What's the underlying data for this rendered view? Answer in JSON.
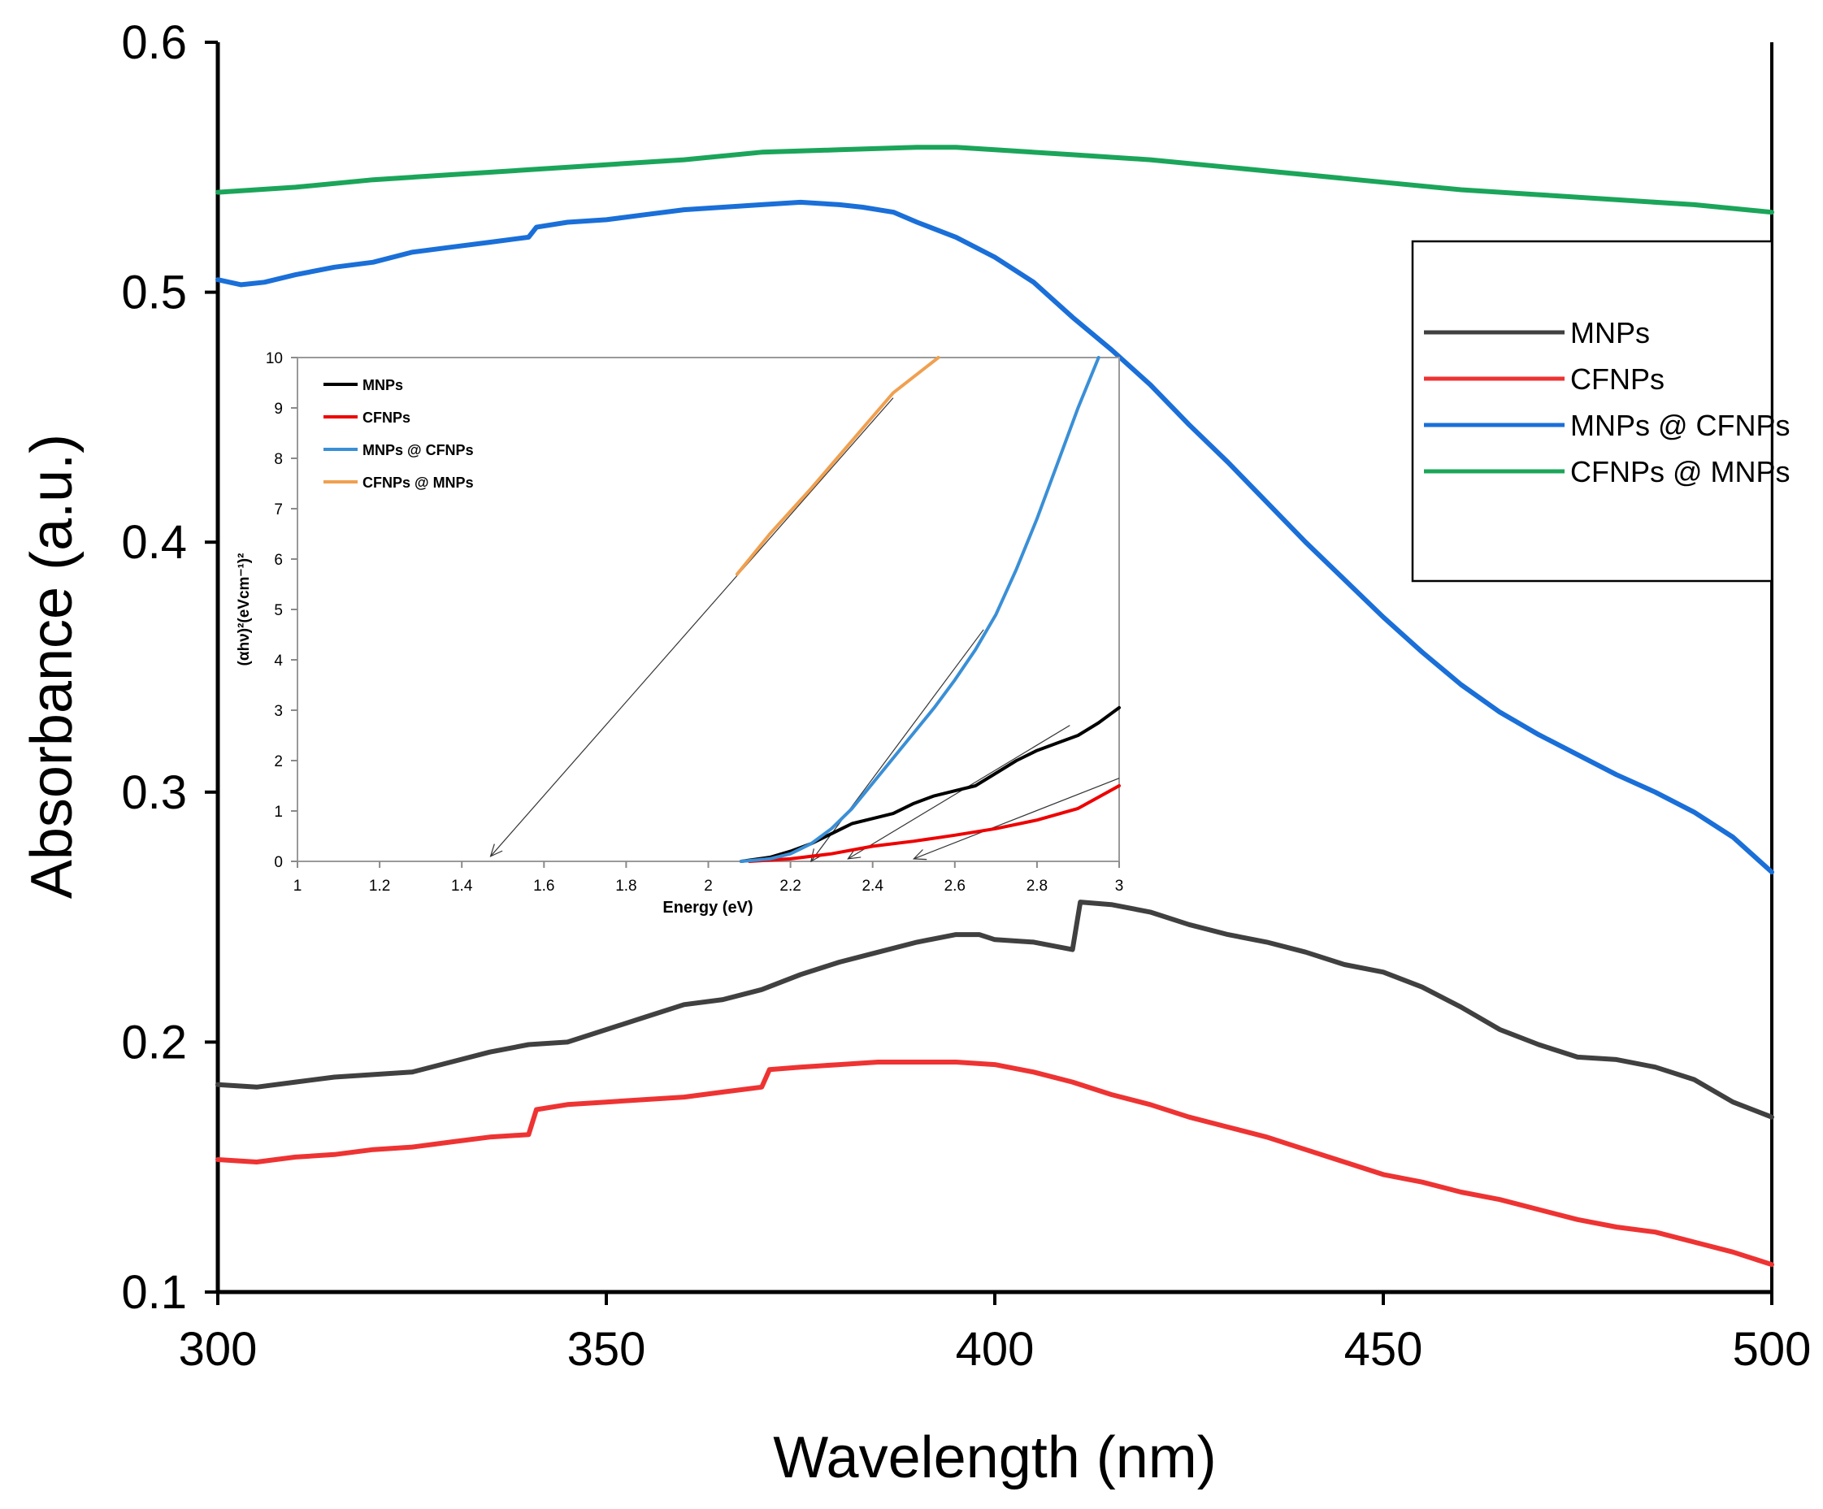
{
  "chart_data": [
    {
      "type": "line",
      "name": "main",
      "title": "",
      "xlabel": "Wavelength (nm)",
      "ylabel": "Absorbance (a.u.)",
      "xlim": [
        300,
        500
      ],
      "ylim": [
        0.1,
        0.6
      ],
      "xticks": [
        300,
        350,
        400,
        450,
        500
      ],
      "yticks": [
        0.1,
        0.2,
        0.3,
        0.4,
        0.5,
        0.6
      ],
      "grid": false,
      "legend_position": "right",
      "series": [
        {
          "name": "MNPs",
          "color": "#404040",
          "x": [
            300,
            305,
            310,
            315,
            320,
            325,
            330,
            335,
            340,
            345,
            350,
            355,
            360,
            365,
            370,
            375,
            380,
            385,
            390,
            395,
            398,
            400,
            405,
            410,
            411,
            415,
            420,
            425,
            430,
            435,
            440,
            445,
            450,
            455,
            460,
            465,
            470,
            475,
            480,
            485,
            490,
            495,
            500
          ],
          "values": [
            0.183,
            0.182,
            0.184,
            0.186,
            0.187,
            0.188,
            0.192,
            0.196,
            0.199,
            0.2,
            0.205,
            0.21,
            0.215,
            0.217,
            0.221,
            0.227,
            0.232,
            0.236,
            0.24,
            0.243,
            0.243,
            0.241,
            0.24,
            0.237,
            0.256,
            0.255,
            0.252,
            0.247,
            0.243,
            0.24,
            0.236,
            0.231,
            0.228,
            0.222,
            0.214,
            0.205,
            0.199,
            0.194,
            0.193,
            0.19,
            0.185,
            0.176,
            0.17
          ]
        },
        {
          "name": "CFNPs",
          "color": "#ee3333",
          "x": [
            300,
            305,
            310,
            315,
            320,
            325,
            330,
            335,
            340,
            341,
            345,
            350,
            355,
            360,
            365,
            370,
            371,
            375,
            380,
            385,
            390,
            395,
            400,
            405,
            410,
            415,
            420,
            425,
            430,
            435,
            440,
            445,
            450,
            455,
            460,
            465,
            470,
            475,
            480,
            485,
            490,
            495,
            500
          ],
          "values": [
            0.153,
            0.152,
            0.154,
            0.155,
            0.157,
            0.158,
            0.16,
            0.162,
            0.163,
            0.173,
            0.175,
            0.176,
            0.177,
            0.178,
            0.18,
            0.182,
            0.189,
            0.19,
            0.191,
            0.192,
            0.192,
            0.192,
            0.191,
            0.188,
            0.184,
            0.179,
            0.175,
            0.17,
            0.166,
            0.162,
            0.157,
            0.152,
            0.147,
            0.144,
            0.14,
            0.137,
            0.133,
            0.129,
            0.126,
            0.124,
            0.12,
            0.116,
            0.111
          ]
        },
        {
          "name": "MNPs @ CFNPs",
          "color": "#1a6fd8",
          "x": [
            300,
            303,
            306,
            310,
            315,
            320,
            325,
            330,
            335,
            340,
            341,
            345,
            350,
            355,
            360,
            365,
            370,
            375,
            380,
            383,
            387,
            390,
            395,
            400,
            405,
            410,
            415,
            420,
            425,
            430,
            435,
            440,
            445,
            450,
            455,
            460,
            465,
            470,
            475,
            480,
            485,
            490,
            495,
            500
          ],
          "values": [
            0.505,
            0.503,
            0.504,
            0.507,
            0.51,
            0.512,
            0.516,
            0.518,
            0.52,
            0.522,
            0.526,
            0.528,
            0.529,
            0.531,
            0.533,
            0.534,
            0.535,
            0.536,
            0.535,
            0.534,
            0.532,
            0.528,
            0.522,
            0.514,
            0.504,
            0.49,
            0.477,
            0.463,
            0.447,
            0.432,
            0.416,
            0.4,
            0.385,
            0.37,
            0.356,
            0.343,
            0.332,
            0.323,
            0.315,
            0.307,
            0.3,
            0.292,
            0.282,
            0.268
          ]
        },
        {
          "name": "CFNPs @ MNPs",
          "color": "#1ba55a",
          "x": [
            300,
            310,
            320,
            330,
            340,
            350,
            360,
            370,
            380,
            390,
            395,
            400,
            410,
            420,
            430,
            440,
            450,
            460,
            470,
            480,
            490,
            500
          ],
          "values": [
            0.54,
            0.542,
            0.545,
            0.547,
            0.549,
            0.551,
            0.553,
            0.556,
            0.557,
            0.558,
            0.558,
            0.557,
            0.555,
            0.553,
            0.55,
            0.547,
            0.544,
            0.541,
            0.539,
            0.537,
            0.535,
            0.532
          ]
        }
      ]
    },
    {
      "type": "line",
      "name": "inset",
      "title": "",
      "xlabel": "Energy (eV)",
      "ylabel": "(αhν)²(eVcm⁻¹)²",
      "xlim": [
        1,
        3
      ],
      "ylim": [
        0,
        10
      ],
      "xticks": [
        "1",
        "1.2",
        "1.4",
        "1.6",
        "1.8",
        "2",
        "2.2",
        "2.4",
        "2.6",
        "2.8",
        "3"
      ],
      "yticks": [
        "0",
        "1",
        "2",
        "3",
        "4",
        "5",
        "6",
        "7",
        "8",
        "9",
        "10"
      ],
      "grid": false,
      "legend_position": "top-left",
      "series": [
        {
          "name": "MNPs",
          "color": "#000000",
          "x": [
            2.08,
            2.15,
            2.2,
            2.25,
            2.3,
            2.35,
            2.4,
            2.45,
            2.5,
            2.55,
            2.6,
            2.65,
            2.7,
            2.75,
            2.8,
            2.85,
            2.9,
            2.95,
            3.0
          ],
          "values": [
            0.0,
            0.08,
            0.2,
            0.35,
            0.55,
            0.75,
            0.85,
            0.95,
            1.15,
            1.3,
            1.4,
            1.5,
            1.75,
            2.0,
            2.2,
            2.35,
            2.5,
            2.75,
            3.05
          ]
        },
        {
          "name": "CFNPs",
          "color": "#ee0000",
          "x": [
            2.1,
            2.2,
            2.3,
            2.4,
            2.5,
            2.6,
            2.7,
            2.8,
            2.9,
            3.0
          ],
          "values": [
            0.0,
            0.05,
            0.15,
            0.3,
            0.4,
            0.52,
            0.65,
            0.82,
            1.05,
            1.5
          ]
        },
        {
          "name": "MNPs @ CFNPs",
          "color": "#3a8fd6",
          "x": [
            2.08,
            2.15,
            2.2,
            2.25,
            2.3,
            2.35,
            2.4,
            2.45,
            2.5,
            2.55,
            2.6,
            2.65,
            2.7,
            2.75,
            2.8,
            2.85,
            2.9,
            2.95
          ],
          "values": [
            0.0,
            0.05,
            0.15,
            0.35,
            0.65,
            1.05,
            1.55,
            2.05,
            2.55,
            3.05,
            3.6,
            4.2,
            4.9,
            5.8,
            6.8,
            7.9,
            9.0,
            10.0
          ]
        },
        {
          "name": "CFNPs @ MNPs",
          "color": "#f0a050",
          "x": [
            2.07,
            2.15,
            2.25,
            2.35,
            2.45,
            2.56
          ],
          "values": [
            5.7,
            6.5,
            7.4,
            8.35,
            9.3,
            10.0
          ]
        }
      ]
    }
  ]
}
